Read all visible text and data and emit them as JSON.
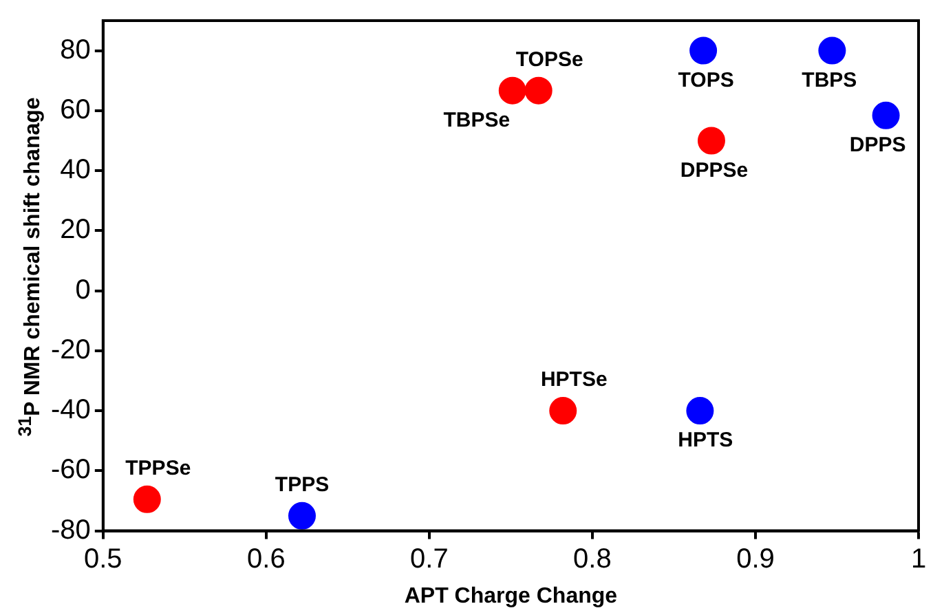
{
  "chart_data": {
    "type": "scatter",
    "xlabel": "APT Charge Change",
    "ylabel": "$^{31}$P NMR chemical shift chanage",
    "xlim": [
      0.5,
      1
    ],
    "xticks": [
      0.5,
      0.6,
      0.7,
      0.8,
      0.9,
      1
    ],
    "ylim": [
      -80,
      90
    ],
    "yticks": [
      -80,
      -60,
      -40,
      -20,
      0,
      20,
      40,
      60,
      80
    ],
    "grid": false,
    "legend": false,
    "marker": "circle",
    "series": [
      {
        "color": "#ff0000",
        "x": [
          0.527,
          0.751,
          0.767,
          0.782,
          0.873
        ],
        "values": [
          -69.5,
          66.7,
          66.7,
          -40,
          50
        ]
      },
      {
        "color": "#0000ff",
        "x": [
          0.622,
          0.868,
          0.947,
          0.98,
          0.866
        ],
        "values": [
          -75,
          80,
          80,
          58.4,
          -40
        ]
      }
    ],
    "annotations": [
      {
        "text": "TPPSe",
        "x": 0.527,
        "y": -69.5
      },
      {
        "text": "TBPSe",
        "x": 0.751,
        "y": 66.7
      },
      {
        "text": "TOPSe",
        "x": 0.767,
        "y": 66.7
      },
      {
        "text": "HPTSe",
        "x": 0.782,
        "y": -40
      },
      {
        "text": "DPPSe",
        "x": 0.873,
        "y": 50
      },
      {
        "text": "TPPS",
        "x": 0.622,
        "y": -75
      },
      {
        "text": "TOPS",
        "x": 0.868,
        "y": 80
      },
      {
        "text": "TBPS",
        "x": 0.947,
        "y": 80
      },
      {
        "text": "DPPS",
        "x": 0.98,
        "y": 58.4
      },
      {
        "text": "HPTS",
        "x": 0.866,
        "y": -40
      }
    ]
  }
}
